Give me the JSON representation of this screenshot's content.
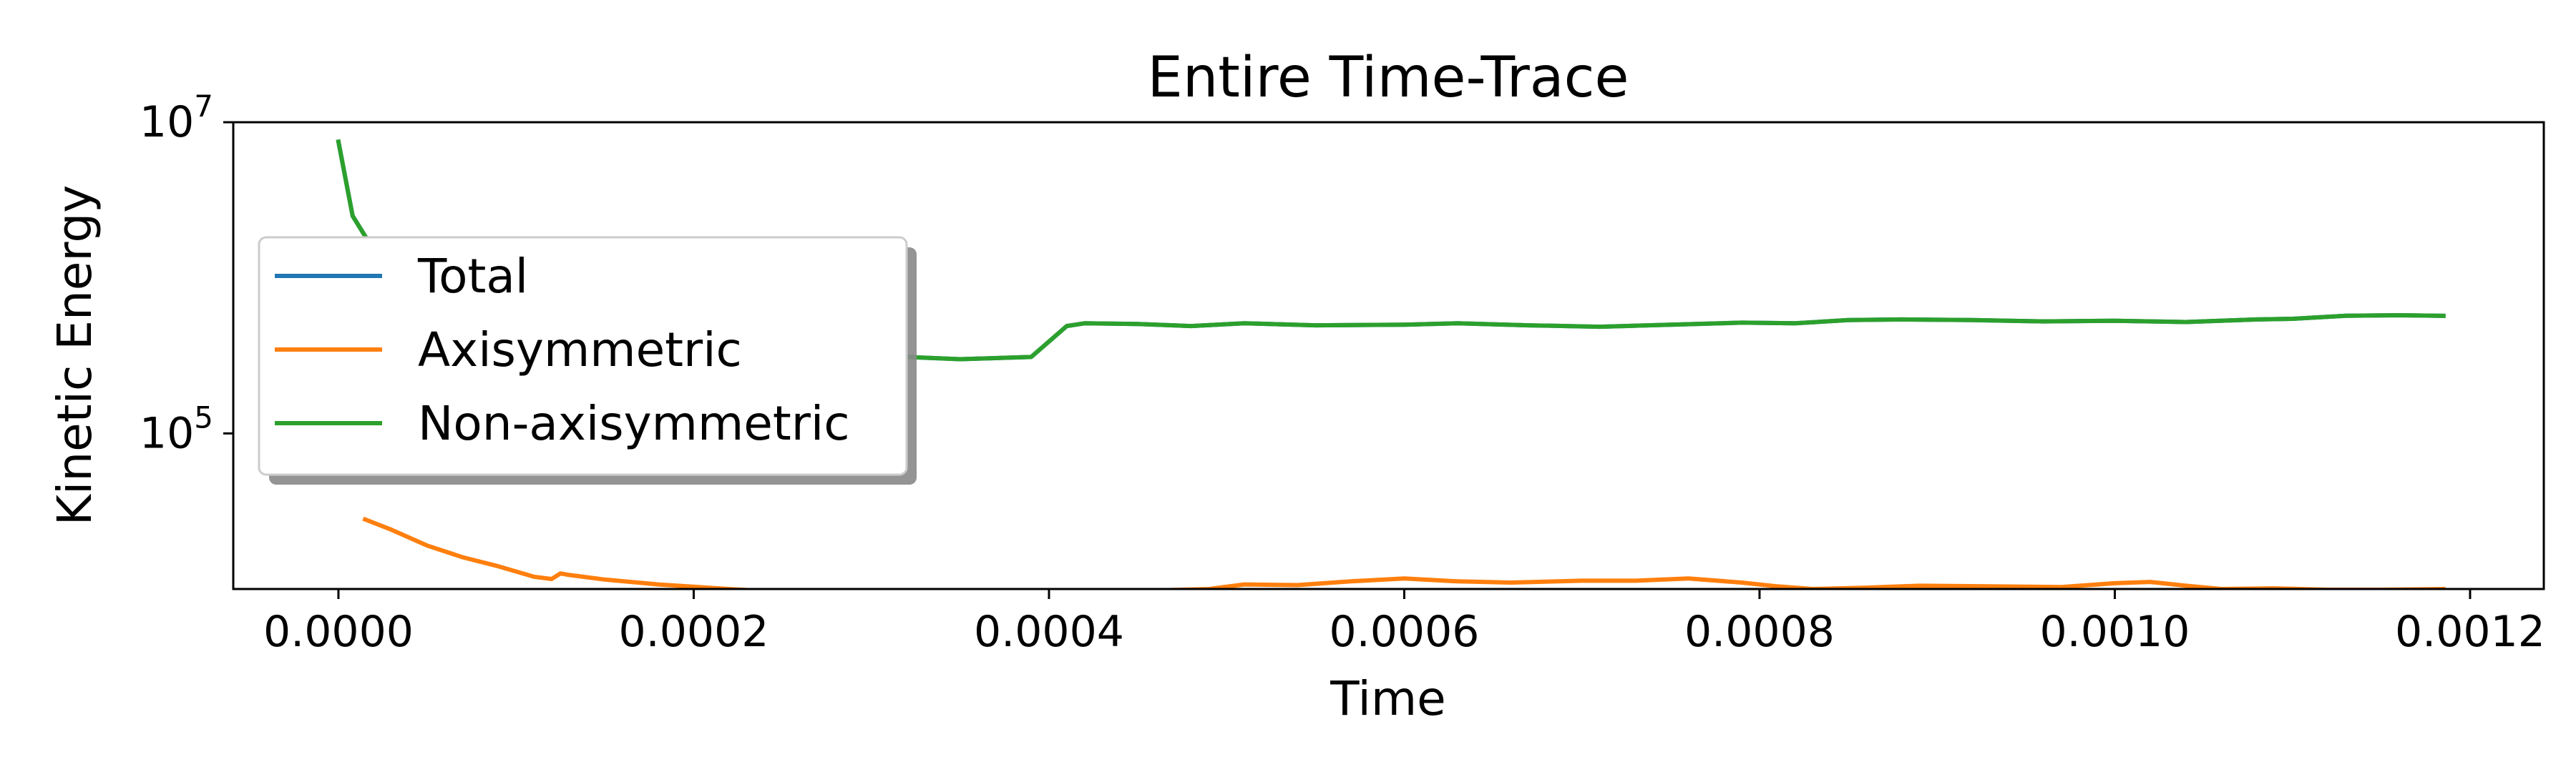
{
  "chart_data": {
    "type": "line",
    "title": "Entire Time-Trace",
    "xlabel": "Time",
    "ylabel": "Kinetic Energy",
    "xlim": [
      -5.92e-05,
      0.0012415
    ],
    "ylim_log10": [
      4.0,
      7.0
    ],
    "yscale": "log",
    "x_ticks": [
      {
        "value": 0.0,
        "label": "0.0000"
      },
      {
        "value": 0.0002,
        "label": "0.0002"
      },
      {
        "value": 0.0004,
        "label": "0.0004"
      },
      {
        "value": 0.0006,
        "label": "0.0006"
      },
      {
        "value": 0.0008,
        "label": "0.0008"
      },
      {
        "value": 0.001,
        "label": "0.0010"
      },
      {
        "value": 0.0012,
        "label": "0.0012"
      }
    ],
    "y_ticks": [
      {
        "value": 100000,
        "base": "10",
        "exp": "5"
      },
      {
        "value": 10000000,
        "base": "10",
        "exp": "7"
      }
    ],
    "legend_position": "upper-left",
    "series": [
      {
        "name": "Total",
        "color": "#1f77b4",
        "x": [
          0.0,
          8e-06,
          2e-05,
          4e-05,
          6e-05,
          8e-05,
          0.0001,
          0.00012,
          0.00015,
          0.0002,
          0.00025,
          0.0003,
          0.00032,
          0.00035,
          0.00039,
          0.0004,
          0.00041,
          0.00042,
          0.00045,
          0.00048,
          0.00051,
          0.00055,
          0.0006,
          0.00063,
          0.00067,
          0.00071,
          0.00075,
          0.00079,
          0.00082,
          0.00085,
          0.00088,
          0.00092,
          0.00096,
          0.001,
          0.00104,
          0.00108,
          0.0011,
          0.00113,
          0.00116,
          0.001185
        ],
        "y": [
          7500000,
          2500000,
          1500000,
          900000,
          650000,
          500000,
          420000,
          400000,
          370000,
          350000,
          330000,
          320000,
          310000,
          300000,
          310000,
          390000,
          490000,
          510000,
          505000,
          490000,
          510000,
          495000,
          500000,
          510000,
          495000,
          485000,
          500000,
          515000,
          510000,
          535000,
          540000,
          535000,
          525000,
          530000,
          520000,
          540000,
          545000,
          570000,
          575000,
          570000
        ]
      },
      {
        "name": "Axisymmetric",
        "color": "#ff7f0e",
        "x": [
          1.5e-05,
          3e-05,
          5e-05,
          7e-05,
          9e-05,
          0.00011,
          0.00012,
          0.000125,
          0.00013,
          0.00015,
          0.00018,
          0.00022,
          0.00026,
          0.0003,
          0.00034,
          0.00037,
          0.000395,
          0.0004,
          0.000405,
          0.00043,
          0.00046,
          0.00049,
          0.00051,
          0.00054,
          0.00057,
          0.0006,
          0.00063,
          0.00066,
          0.0007,
          0.00073,
          0.00076,
          0.00079,
          0.00081,
          0.00083,
          0.00086,
          0.00089,
          0.00093,
          0.00097,
          0.001,
          0.00102,
          0.00104,
          0.00106,
          0.00109,
          0.00112,
          0.00115,
          0.001185
        ],
        "y": [
          28000,
          24000,
          19000,
          16000,
          14000,
          12000,
          11600,
          12600,
          12300,
          11500,
          10700,
          10000,
          9400,
          9000,
          9200,
          9000,
          8700,
          8600,
          9500,
          9700,
          9800,
          10000,
          10700,
          10600,
          11200,
          11700,
          11200,
          11000,
          11300,
          11300,
          11700,
          11000,
          10400,
          10000,
          10200,
          10500,
          10400,
          10300,
          10900,
          11100,
          10500,
          10000,
          10100,
          9900,
          9900,
          10000
        ]
      },
      {
        "name": "Non-axisymmetric",
        "color": "#2ca02c",
        "x": [
          0.0,
          8e-06,
          2e-05,
          4e-05,
          6e-05,
          8e-05,
          0.0001,
          0.00012,
          0.00015,
          0.0002,
          0.00025,
          0.0003,
          0.00032,
          0.00035,
          0.00039,
          0.0004,
          0.00041,
          0.00042,
          0.00045,
          0.00048,
          0.00051,
          0.00055,
          0.0006,
          0.00063,
          0.00067,
          0.00071,
          0.00075,
          0.00079,
          0.00082,
          0.00085,
          0.00088,
          0.00092,
          0.00096,
          0.001,
          0.00104,
          0.00108,
          0.0011,
          0.00113,
          0.00116,
          0.001185
        ],
        "y": [
          7500000,
          2500000,
          1500000,
          900000,
          650000,
          500000,
          420000,
          400000,
          370000,
          350000,
          330000,
          320000,
          310000,
          300000,
          310000,
          390000,
          490000,
          510000,
          505000,
          490000,
          510000,
          495000,
          500000,
          510000,
          495000,
          485000,
          500000,
          515000,
          510000,
          535000,
          540000,
          535000,
          525000,
          530000,
          520000,
          540000,
          545000,
          570000,
          575000,
          570000
        ]
      }
    ]
  }
}
